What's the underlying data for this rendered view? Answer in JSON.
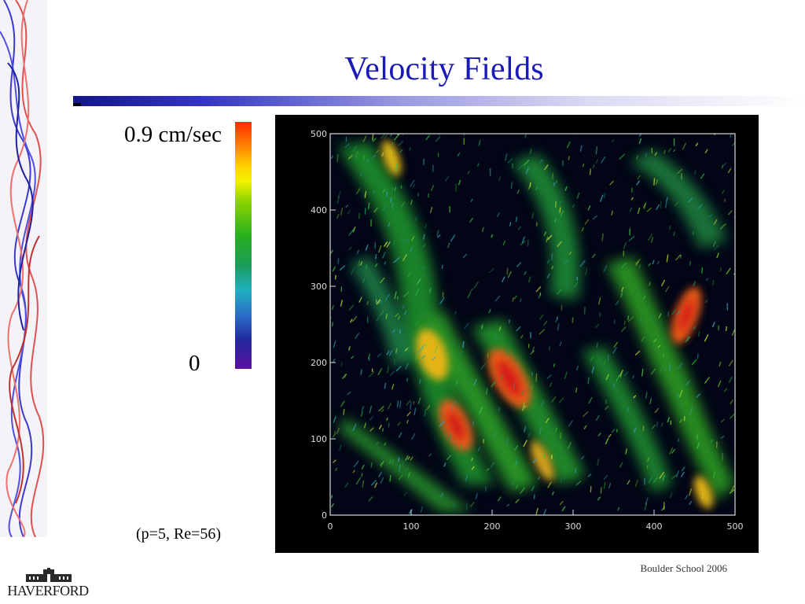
{
  "slide": {
    "title": "Velocity Fields",
    "footer": "Boulder School 2006",
    "logo_text": "HAVERFORD"
  },
  "colorbar": {
    "max_label": "0.9 cm/sec",
    "min_label": "0",
    "colormap": [
      "#5a0fa0",
      "#222a9e",
      "#2a6fc8",
      "#20b0c0",
      "#1a9c5a",
      "#29b01f",
      "#8ed400",
      "#f2f200",
      "#ffd200",
      "#ff7300",
      "#ff2a00"
    ]
  },
  "caption": "(p=5, Re=56)",
  "plot": {
    "x_ticks": [
      "0",
      "100",
      "200",
      "300",
      "400",
      "500"
    ],
    "y_ticks": [
      "0",
      "100",
      "200",
      "300",
      "400",
      "500"
    ],
    "xlim": [
      0,
      500
    ],
    "ylim": [
      0,
      500
    ],
    "background": "#000000"
  }
}
